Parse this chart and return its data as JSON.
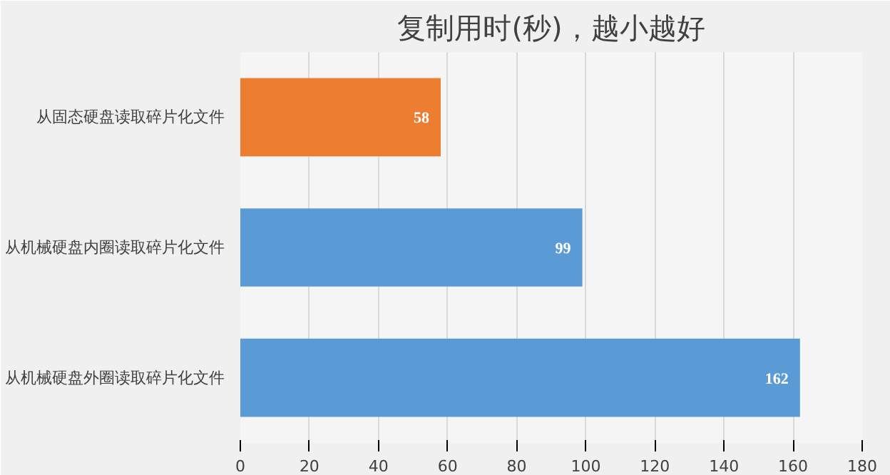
{
  "chart_data": {
    "type": "bar",
    "orientation": "horizontal",
    "title": "复制用时(秒)，越小越好",
    "categories": [
      "从固态硬盘读取碎片化文件",
      "从机械硬盘内圈读取碎片化文件",
      "从机械硬盘外圈读取碎片化文件"
    ],
    "values": [
      58,
      99,
      162
    ],
    "colors": [
      "#ed7d31",
      "#5b9bd5",
      "#5b9bd5"
    ],
    "xlim": [
      0,
      180
    ],
    "xticks": [
      0,
      20,
      40,
      60,
      80,
      100,
      120,
      140,
      160,
      180
    ],
    "grid": "x",
    "data_labels": true
  }
}
